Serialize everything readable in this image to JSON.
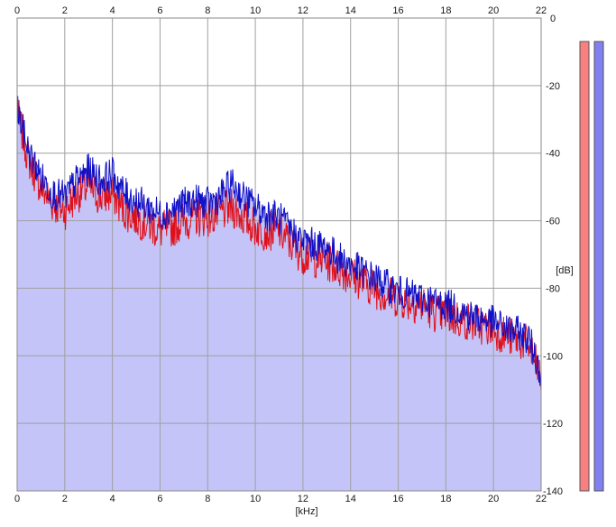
{
  "chart_data": {
    "type": "line",
    "title": "",
    "xlabel": "[kHz]",
    "ylabel": "[dB]",
    "xlim": [
      0,
      22
    ],
    "ylim": [
      -140,
      0
    ],
    "x_ticks": [
      0,
      2,
      4,
      6,
      8,
      10,
      12,
      14,
      16,
      18,
      20,
      22
    ],
    "y_ticks": [
      0,
      -20,
      -40,
      -60,
      -80,
      -100,
      -120,
      -140
    ],
    "y_tick_labels": [
      "0",
      "-20",
      "-40",
      "-60",
      "-80",
      "-100",
      "-120",
      "-140"
    ],
    "grid": true,
    "colors": {
      "fill": "#c4c4f8",
      "left_channel": "#e0101a",
      "right_channel": "#1010c8",
      "grid": "#a0a0a0",
      "meter_left": "#f88080",
      "meter_right": "#8080f0"
    },
    "series": [
      {
        "color": "#e0101a",
        "x": [
          0,
          0.5,
          1,
          1.5,
          2,
          2.5,
          3,
          3.5,
          4,
          4.5,
          5,
          5.5,
          6,
          6.5,
          7,
          7.5,
          8,
          8.5,
          9,
          9.5,
          10,
          10.5,
          11,
          11.5,
          12,
          12.5,
          13,
          13.5,
          14,
          14.5,
          15,
          15.5,
          16,
          16.5,
          17,
          17.5,
          18,
          18.5,
          19,
          19.5,
          20,
          20.5,
          21,
          21.5,
          22
        ],
        "values": [
          -28,
          -42,
          -50,
          -55,
          -57,
          -52,
          -50,
          -53,
          -52,
          -57,
          -59,
          -61,
          -63,
          -62,
          -60,
          -59,
          -59,
          -58,
          -56,
          -59,
          -62,
          -63,
          -63,
          -67,
          -70,
          -71,
          -72,
          -74,
          -76,
          -78,
          -80,
          -82,
          -83,
          -84,
          -85,
          -87,
          -88,
          -89,
          -90,
          -91,
          -92,
          -94,
          -95,
          -97,
          -107
        ]
      },
      {
        "color": "#1010c8",
        "x": [
          0,
          0.5,
          1,
          1.5,
          2,
          2.5,
          3,
          3.5,
          4,
          4.5,
          5,
          5.5,
          6,
          6.5,
          7,
          7.5,
          8,
          8.5,
          9,
          9.5,
          10,
          10.5,
          11,
          11.5,
          12,
          12.5,
          13,
          13.5,
          14,
          14.5,
          15,
          15.5,
          16,
          16.5,
          17,
          17.5,
          18,
          18.5,
          19,
          19.5,
          20,
          20.5,
          21,
          21.5,
          22
        ],
        "values": [
          -27,
          -40,
          -47,
          -52,
          -53,
          -48,
          -45,
          -48,
          -46,
          -52,
          -54,
          -56,
          -58,
          -57,
          -55,
          -54,
          -55,
          -53,
          -49,
          -53,
          -56,
          -58,
          -59,
          -63,
          -66,
          -67,
          -68,
          -71,
          -73,
          -75,
          -77,
          -79,
          -81,
          -82,
          -83,
          -84,
          -85,
          -86,
          -88,
          -89,
          -90,
          -92,
          -93,
          -95,
          -105
        ]
      }
    ],
    "meters": [
      {
        "color": "#f88080"
      },
      {
        "color": "#8080f0"
      }
    ]
  }
}
